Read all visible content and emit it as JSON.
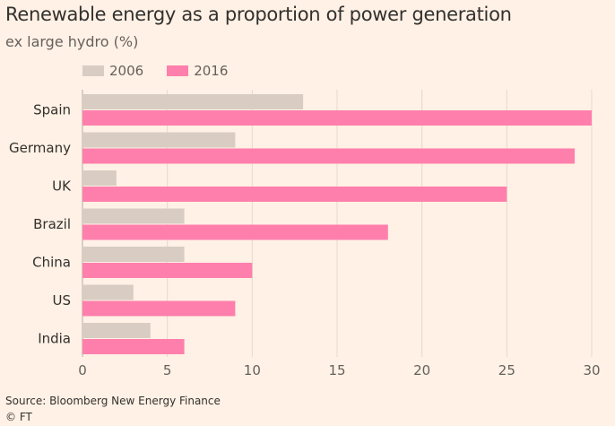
{
  "chart_data": {
    "type": "bar",
    "orientation": "horizontal",
    "title": "Renewable energy as a proportion of power generation",
    "subtitle": "ex large hydro (%)",
    "categories": [
      "Spain",
      "Germany",
      "UK",
      "Brazil",
      "China",
      "US",
      "India"
    ],
    "series": [
      {
        "name": "2006",
        "values": [
          13,
          9,
          2,
          6,
          6,
          3,
          4
        ],
        "color": "#d9cdc3"
      },
      {
        "name": "2016",
        "values": [
          30,
          29,
          25,
          18,
          10,
          9,
          6
        ],
        "color": "#ff7fac"
      }
    ],
    "xlim": [
      0,
      30
    ],
    "xticks": [
      0,
      5,
      10,
      15,
      20,
      25,
      30
    ],
    "grid": "vertical",
    "legend_position": "top-left",
    "source": "Source: Bloomberg New Energy Finance",
    "credit": "© FT"
  }
}
